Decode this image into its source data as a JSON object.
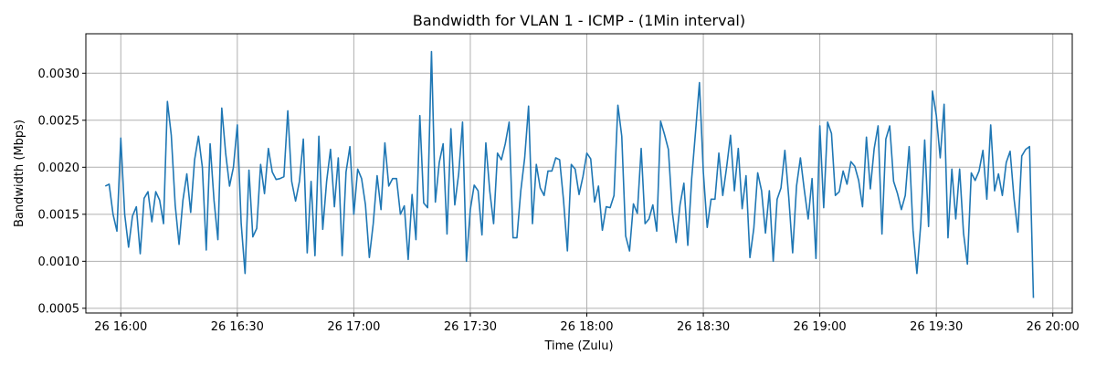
{
  "chart_data": {
    "type": "line",
    "title": "Bandwidth for VLAN 1 - ICMP - (1Min interval)",
    "xlabel": "Time (Zulu)",
    "ylabel": "Bandwidth (Mbps)",
    "x_start": "26 15:56",
    "x_step_minutes": 1,
    "xlim": [
      "26 15:51",
      "26 20:05"
    ],
    "ylim": [
      0.00045,
      0.00342
    ],
    "x_ticks": [
      "26 16:00",
      "26 16:30",
      "26 17:00",
      "26 17:30",
      "26 18:00",
      "26 18:30",
      "26 19:00",
      "26 19:30",
      "26 20:00"
    ],
    "y_ticks": [
      "0.0005",
      "0.0010",
      "0.0015",
      "0.0020",
      "0.0025",
      "0.0030"
    ],
    "grid": true,
    "line_color": "#1f77b4",
    "series": [
      {
        "values": [
          0.0018,
          0.00182,
          0.0015,
          0.00132,
          0.00231,
          0.0015,
          0.00115,
          0.00148,
          0.00158,
          0.00108,
          0.00167,
          0.00174,
          0.00142,
          0.00174,
          0.00165,
          0.0014,
          0.0027,
          0.00234,
          0.0016,
          0.00118,
          0.00165,
          0.00193,
          0.00152,
          0.00208,
          0.00233,
          0.002,
          0.00112,
          0.00225,
          0.00165,
          0.00123,
          0.00263,
          0.00215,
          0.0018,
          0.002,
          0.00245,
          0.0014,
          0.00087,
          0.00197,
          0.00126,
          0.00135,
          0.00203,
          0.00172,
          0.0022,
          0.00195,
          0.00187,
          0.00188,
          0.0019,
          0.0026,
          0.00185,
          0.00164,
          0.00185,
          0.0023,
          0.00109,
          0.00185,
          0.00106,
          0.00233,
          0.00134,
          0.00185,
          0.00219,
          0.00158,
          0.0021,
          0.00106,
          0.00195,
          0.00222,
          0.0015,
          0.00198,
          0.00188,
          0.0016,
          0.00104,
          0.0014,
          0.00191,
          0.00155,
          0.00226,
          0.0018,
          0.00188,
          0.00188,
          0.0015,
          0.00159,
          0.00102,
          0.00171,
          0.00123,
          0.00255,
          0.00162,
          0.00157,
          0.00323,
          0.00163,
          0.00205,
          0.00225,
          0.00129,
          0.00241,
          0.0016,
          0.00193,
          0.00248,
          0.001,
          0.00155,
          0.00181,
          0.00175,
          0.00128,
          0.00226,
          0.00175,
          0.0014,
          0.00215,
          0.00208,
          0.00225,
          0.00248,
          0.00125,
          0.00125,
          0.00175,
          0.0021,
          0.00265,
          0.0014,
          0.00203,
          0.00178,
          0.0017,
          0.00196,
          0.00196,
          0.0021,
          0.00208,
          0.00165,
          0.00111,
          0.00203,
          0.00198,
          0.00171,
          0.0019,
          0.00215,
          0.00209,
          0.00163,
          0.0018,
          0.00133,
          0.00158,
          0.00157,
          0.0017,
          0.00266,
          0.00233,
          0.00127,
          0.00111,
          0.00161,
          0.00151,
          0.0022,
          0.0014,
          0.00145,
          0.0016,
          0.00132,
          0.00249,
          0.00235,
          0.00219,
          0.00153,
          0.0012,
          0.0016,
          0.00183,
          0.00117,
          0.00188,
          0.00238,
          0.0029,
          0.00195,
          0.00136,
          0.00166,
          0.00166,
          0.00215,
          0.0017,
          0.002,
          0.00234,
          0.00175,
          0.0022,
          0.00156,
          0.00191,
          0.00104,
          0.00135,
          0.00194,
          0.00175,
          0.0013,
          0.00175,
          0.001,
          0.00166,
          0.00178,
          0.00218,
          0.00168,
          0.00109,
          0.0018,
          0.0021,
          0.00176,
          0.00145,
          0.00188,
          0.00103,
          0.00244,
          0.00157,
          0.00248,
          0.00236,
          0.0017,
          0.00174,
          0.00196,
          0.00182,
          0.00206,
          0.00201,
          0.00186,
          0.00158,
          0.00232,
          0.00177,
          0.0022,
          0.00244,
          0.00129,
          0.0023,
          0.00244,
          0.00185,
          0.00172,
          0.00155,
          0.0017,
          0.00222,
          0.00133,
          0.00087,
          0.0014,
          0.00229,
          0.00137,
          0.00281,
          0.00255,
          0.0021,
          0.00267,
          0.00125,
          0.00198,
          0.00145,
          0.00198,
          0.0013,
          0.00097,
          0.00194,
          0.00186,
          0.00196,
          0.00218,
          0.00166,
          0.00245,
          0.00175,
          0.00193,
          0.0017,
          0.00205,
          0.00217,
          0.00167,
          0.00131,
          0.00212,
          0.00219,
          0.00222,
          0.00061
        ]
      }
    ]
  }
}
